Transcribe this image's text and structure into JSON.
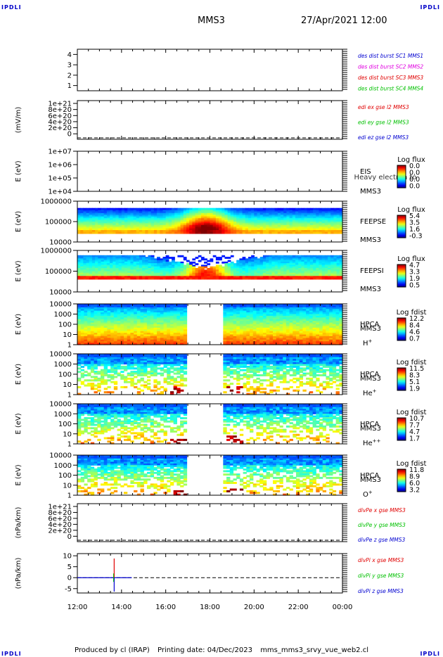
{
  "corners": {
    "tl": "IPDLI",
    "tr": "IPDLI",
    "bl": "IPDLI",
    "br": "IPDLI"
  },
  "header": {
    "title": "MMS3",
    "datetime": "27/Apr/2021 12:00"
  },
  "footer": {
    "produced": "Produced by cl (IRAP)",
    "printing": "Printing date: 04/Dec/2023",
    "file": "mms_mms3_srvy_vue_web2.cl"
  },
  "colors": {
    "red": "#e00000",
    "green": "#00c000",
    "blue": "#0000d0",
    "magenta": "#e000e0"
  },
  "chart_data": [
    {
      "type": "line",
      "ylim": [
        0.5,
        4.5
      ],
      "y_ticks": [
        "1",
        "2",
        "3",
        "4"
      ],
      "x_ticks": [
        "12:00",
        "14:00",
        "16:00",
        "18:00",
        "20:00",
        "22:00",
        "00:00"
      ],
      "legend": [
        "des dist burst SC1 MMS1",
        "des dist burst SC2 MMS2",
        "des dist burst SC3 MMS3",
        "des dist burst SC4 MMS4"
      ],
      "legend_colors": [
        "#0000d0",
        "#e000e0",
        "#e00000",
        "#00c000"
      ]
    },
    {
      "type": "line",
      "ylabel": "(mV/m)",
      "y_ticks": [
        "1e+21",
        "8e+20",
        "6e+20",
        "4e+20",
        "2e+20",
        "0"
      ],
      "legend": [
        "edi ex gse l2 MMS3",
        "edi ey gse l2 MMS3",
        "edi ez gse l2 MMS3"
      ],
      "legend_colors": [
        "#e00000",
        "#00c000",
        "#0000d0"
      ],
      "dashed_zero": true
    },
    {
      "type": "heatmap",
      "ylabel": "E (eV)",
      "y_ticks": [
        "1e+07",
        "1e+06",
        "1e+05",
        "1e+04"
      ],
      "label": [
        "EIS",
        "MMS3"
      ],
      "overlay_text": "Heavy electron to",
      "cb_title": "Log flux",
      "cb_ticks": [
        "0.0",
        "0.0",
        "0.0",
        "0.0"
      ]
    },
    {
      "type": "heatmap",
      "ylabel": "E (eV)",
      "y_ticks": [
        "1000000",
        "100000",
        "10000"
      ],
      "label": [
        "FEEPSE",
        "MMS3"
      ],
      "cb_title": "Log flux",
      "cb_ticks": [
        "5.4",
        "3.5",
        "1.6",
        "-0.3"
      ]
    },
    {
      "type": "heatmap",
      "ylabel": "E (eV)",
      "y_ticks": [
        "1000000",
        "100000",
        "10000"
      ],
      "label": [
        "FEEPSI",
        "MMS3"
      ],
      "cb_title": "Log flux",
      "cb_ticks": [
        "4.7",
        "3.3",
        "1.9",
        "0.5"
      ]
    },
    {
      "type": "heatmap",
      "ylabel": "E (eV)",
      "y_ticks": [
        "10000",
        "1000",
        "100",
        "10",
        "1"
      ],
      "label": [
        "HPCA",
        "MMS3",
        "H+"
      ],
      "cb_title": "Log fdist",
      "cb_ticks": [
        "12.2",
        "8.4",
        "4.6",
        "0.7"
      ]
    },
    {
      "type": "heatmap",
      "ylabel": "E (eV)",
      "y_ticks": [
        "10000",
        "1000",
        "100",
        "10",
        "1"
      ],
      "label": [
        "HPCA",
        "MMS3",
        "He+"
      ],
      "cb_title": "Log fdist",
      "cb_ticks": [
        "11.5",
        "8.3",
        "5.1",
        "1.9"
      ]
    },
    {
      "type": "heatmap",
      "ylabel": "E (eV)",
      "y_ticks": [
        "10000",
        "1000",
        "100",
        "10",
        "1"
      ],
      "label": [
        "HPCA",
        "MMS3",
        "He++"
      ],
      "cb_title": "Log fdist",
      "cb_ticks": [
        "10.7",
        "7.7",
        "4.7",
        "1.7"
      ]
    },
    {
      "type": "heatmap",
      "ylabel": "E (eV)",
      "y_ticks": [
        "10000",
        "1000",
        "100",
        "10",
        "1"
      ],
      "label": [
        "HPCA",
        "MMS3",
        "O+"
      ],
      "cb_title": "Log fdist",
      "cb_ticks": [
        "11.8",
        "8.9",
        "6.0",
        "3.2"
      ]
    },
    {
      "type": "line",
      "ylabel": "(nPa/km)",
      "y_ticks": [
        "1e+21",
        "8e+20",
        "6e+20",
        "4e+20",
        "2e+20",
        "0"
      ],
      "legend": [
        "divPe x gse MMS3",
        "divPe y gse MMS3",
        "divPe z gse MMS3"
      ],
      "legend_colors": [
        "#e00000",
        "#00c000",
        "#0000d0"
      ],
      "dashed_zero": true
    },
    {
      "type": "line",
      "ylabel": "(nPa/km)",
      "y_ticks": [
        "10",
        "5",
        "0",
        "-5"
      ],
      "ylim": [
        -7,
        11
      ],
      "legend": [
        "divPi x gse MMS3",
        "divPi y gse MMS3",
        "divPi z gse MMS3"
      ],
      "legend_colors": [
        "#e00000",
        "#00c000",
        "#0000d0"
      ],
      "dashed_zero": true,
      "spike_time": "13:40",
      "x_ticks": [
        "12:00",
        "14:00",
        "16:00",
        "18:00",
        "20:00",
        "22:00",
        "00:00"
      ]
    }
  ]
}
